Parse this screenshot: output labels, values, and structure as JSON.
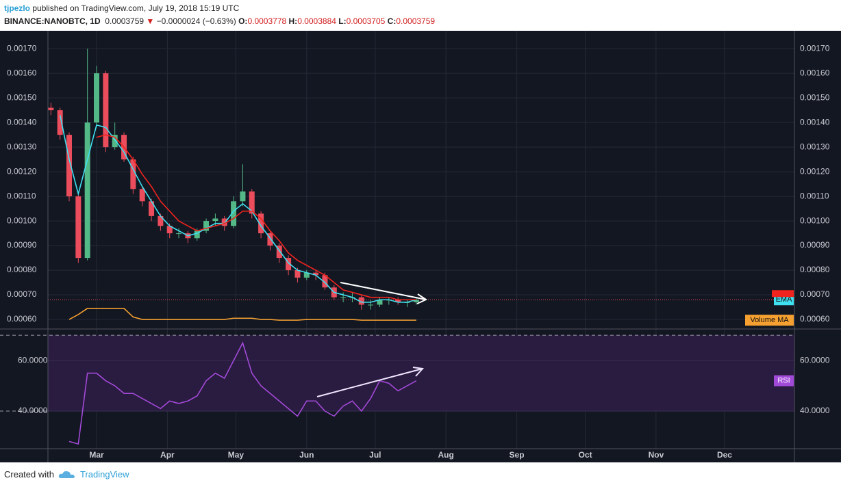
{
  "header": {
    "author": "tjpezlo",
    "published": "published on TradingView.com, July 19, 2018 15:19 UTC",
    "symbol": "BINANCE:NANOBTC, 1D",
    "last": "0.0003759",
    "arrow": "▼",
    "change": "−0.0000024 (−0.63%)",
    "o_label": "O:",
    "o": "0.0003778",
    "h_label": "H:",
    "h": "0.0003884",
    "l_label": "L:",
    "l": "0.0003705",
    "c_label": "C:",
    "c": "0.0003759"
  },
  "footer": {
    "created": "Created with",
    "brand": "TradingView"
  },
  "chart_data": [
    {
      "type": "candlestick",
      "x": [
        39,
        43,
        47,
        51,
        55,
        59,
        63,
        67,
        71,
        75,
        79,
        83,
        87,
        91,
        95,
        99,
        103,
        107,
        111,
        115,
        119,
        123,
        127,
        131,
        135,
        139,
        143,
        147,
        151,
        155,
        159,
        163,
        167,
        171,
        175,
        179,
        183,
        187,
        191,
        195,
        199
      ],
      "open": [
        0.00146,
        0.00145,
        0.00135,
        0.0011,
        0.00085,
        0.0014,
        0.0016,
        0.0013,
        0.00135,
        0.00125,
        0.00113,
        0.00108,
        0.00102,
        0.00098,
        0.00095,
        0.00095,
        0.00093,
        0.00096,
        0.001,
        0.00101,
        0.00098,
        0.00108,
        0.00112,
        0.00103,
        0.00095,
        0.0009,
        0.00085,
        0.0008,
        0.00077,
        0.00079,
        0.00078,
        0.00073,
        0.00069,
        0.00069,
        0.00069,
        0.00066,
        0.00066,
        0.00068,
        0.00068,
        0.00067,
        0.00067
      ],
      "high": [
        0.00148,
        0.00146,
        0.00136,
        0.00112,
        0.0017,
        0.00163,
        0.00161,
        0.0014,
        0.00136,
        0.00126,
        0.00114,
        0.00109,
        0.00103,
        0.00099,
        0.00097,
        0.00096,
        0.00097,
        0.00101,
        0.00103,
        0.00102,
        0.0011,
        0.00123,
        0.00113,
        0.00104,
        0.00096,
        0.00091,
        0.00086,
        0.00081,
        0.0008,
        0.0008,
        0.00079,
        0.00074,
        0.00071,
        0.00071,
        0.0007,
        0.00068,
        0.00069,
        0.00069,
        0.00069,
        0.00068,
        0.00069
      ],
      "low": [
        0.00143,
        0.00133,
        0.00108,
        0.00083,
        0.00084,
        0.00138,
        0.00128,
        0.00129,
        0.00124,
        0.00111,
        0.00106,
        0.001,
        0.00096,
        0.00093,
        0.00093,
        0.00091,
        0.00092,
        0.00095,
        0.00098,
        0.00096,
        0.00097,
        0.00106,
        0.00101,
        0.00093,
        0.00088,
        0.00083,
        0.00078,
        0.00075,
        0.00076,
        0.00076,
        0.00072,
        0.00068,
        0.00067,
        0.00067,
        0.00064,
        0.00064,
        0.00065,
        0.00066,
        0.00066,
        0.00065,
        0.00066
      ],
      "close": [
        0.00145,
        0.00135,
        0.0011,
        0.00085,
        0.0014,
        0.0016,
        0.0013,
        0.00135,
        0.00125,
        0.00113,
        0.00108,
        0.00102,
        0.00098,
        0.00095,
        0.00095,
        0.00093,
        0.00096,
        0.001,
        0.00101,
        0.00098,
        0.00108,
        0.00112,
        0.00103,
        0.00095,
        0.0009,
        0.00085,
        0.0008,
        0.00077,
        0.00079,
        0.00078,
        0.00073,
        0.00069,
        0.00069,
        0.00069,
        0.00066,
        0.00066,
        0.00068,
        0.00068,
        0.00067,
        0.00067,
        0.00068
      ],
      "up_color": "#53b987",
      "down_color": "#eb4d5c",
      "series": [
        {
          "name": "EMA",
          "color": "#3fe0f0",
          "values": [
            null,
            0.00143,
            0.00125,
            0.00111,
            0.00125,
            0.00139,
            0.00138,
            0.00133,
            0.00128,
            0.00121,
            0.00114,
            0.00108,
            0.00102,
            0.00098,
            0.00096,
            0.00094,
            0.00095,
            0.00097,
            0.00099,
            0.00099,
            0.00104,
            0.00107,
            0.00104,
            0.00098,
            0.00093,
            0.00088,
            0.00083,
            0.0008,
            0.00079,
            0.00078,
            0.00075,
            0.00071,
            0.0007,
            0.00069,
            0.00067,
            0.00067,
            0.00068,
            0.00068,
            0.00067,
            0.00067,
            0.00068
          ]
        },
        {
          "color": "#f0241e",
          "values": [
            null,
            null,
            null,
            null,
            null,
            0.00134,
            0.00135,
            0.00134,
            0.0013,
            0.00125,
            0.00119,
            0.00114,
            0.00108,
            0.00104,
            0.001,
            0.00098,
            0.00096,
            0.00097,
            0.00098,
            0.00099,
            0.00101,
            0.00104,
            0.00104,
            0.00101,
            0.00096,
            0.00092,
            0.00087,
            0.00084,
            0.00082,
            0.0008,
            0.00078,
            0.00075,
            0.00072,
            0.00071,
            0.0007,
            0.00069,
            0.00069,
            0.00069,
            0.00068,
            0.00068,
            0.00068
          ]
        },
        {
          "name": "Volume MA",
          "color": "#f5a030",
          "values": [
            null,
            null,
            0.0006,
            0.00062,
            0.000645,
            0.000645,
            0.000645,
            0.000645,
            0.000645,
            0.00061,
            0.0006,
            0.0006,
            0.0006,
            0.0006,
            0.0006,
            0.0006,
            0.0006,
            0.0006,
            0.0006,
            0.0006,
            0.000605,
            0.000605,
            0.000605,
            0.0006,
            0.0006,
            0.000597,
            0.000597,
            0.000597,
            0.0006,
            0.0006,
            0.0006,
            0.0006,
            0.0006,
            0.0006,
            0.000597,
            0.000597,
            0.000597,
            0.000597,
            0.000597,
            0.000597,
            0.000597
          ]
        }
      ],
      "xlim": [
        37.7,
        364.6
      ],
      "xticks": [
        {
          "value": 59,
          "label": "Mar"
        },
        {
          "value": 90,
          "label": "Apr"
        },
        {
          "value": 120,
          "label": "May"
        },
        {
          "value": 151,
          "label": "Jun"
        },
        {
          "value": 181,
          "label": "Jul"
        },
        {
          "value": 212,
          "label": "Aug"
        },
        {
          "value": 243,
          "label": "Sep"
        },
        {
          "value": 273,
          "label": "Oct"
        },
        {
          "value": 304,
          "label": "Nov"
        },
        {
          "value": 334,
          "label": "Dec"
        }
      ],
      "ylim": [
        0.000564,
        0.001731
      ],
      "yticks": [
        {
          "value": 0.0006,
          "label": "0.00060"
        },
        {
          "value": 0.0007,
          "label": "0.00070"
        },
        {
          "value": 0.0008,
          "label": "0.00080"
        },
        {
          "value": 0.0009,
          "label": "0.00090"
        },
        {
          "value": 0.001,
          "label": "0.00100"
        },
        {
          "value": 0.0011,
          "label": "0.00110"
        },
        {
          "value": 0.0012,
          "label": "0.00120"
        },
        {
          "value": 0.0013,
          "label": "0.00130"
        },
        {
          "value": 0.0014,
          "label": "0.00140"
        },
        {
          "value": 0.0015,
          "label": "0.00150"
        },
        {
          "value": 0.0016,
          "label": "0.00160"
        },
        {
          "value": 0.0017,
          "label": "0.00170"
        }
      ],
      "grid": true
    },
    {
      "type": "line",
      "x": [
        39,
        43,
        47,
        51,
        55,
        59,
        63,
        67,
        71,
        75,
        79,
        83,
        87,
        91,
        95,
        99,
        103,
        107,
        111,
        115,
        119,
        123,
        127,
        131,
        135,
        139,
        143,
        147,
        151,
        155,
        159,
        163,
        167,
        171,
        175,
        179,
        183,
        187,
        191,
        195,
        199
      ],
      "series": [
        {
          "name": "RSI",
          "color": "#a24ad8",
          "values": [
            null,
            null,
            28,
            27,
            55,
            55,
            52,
            50,
            47,
            47,
            45,
            43,
            41,
            44,
            43,
            44,
            46,
            52,
            55,
            53,
            60,
            67,
            55,
            50,
            47,
            44,
            41,
            38,
            44,
            44,
            40,
            38,
            42,
            44,
            40,
            45,
            52,
            51,
            48,
            50,
            52
          ]
        }
      ],
      "bands": [
        40,
        70
      ],
      "ylim": [
        25.4,
        72.2
      ],
      "yticks": [
        {
          "value": 40,
          "label": "40.0000"
        },
        {
          "value": 60,
          "label": "60.0000"
        }
      ]
    }
  ]
}
